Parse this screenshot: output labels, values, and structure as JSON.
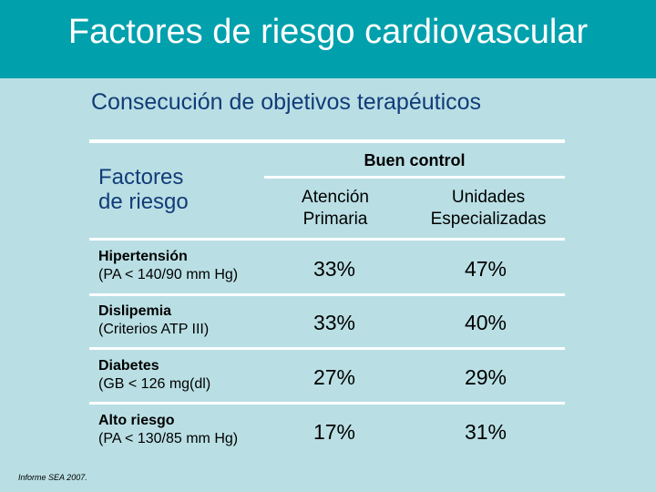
{
  "header": {
    "title": "Factores de riesgo cardiovascular"
  },
  "subtitle": "Consecución de objetivos terapéuticos",
  "table": {
    "risk_column_header": "Factores\nde riesgo",
    "group_header": "Buen control",
    "columns": [
      "Atención\nPrimaria",
      "Unidades\nEspecializadas"
    ],
    "rows": [
      {
        "name": "Hipertensión",
        "criterion": "(PA < 140/90 mm Hg)",
        "values": [
          "33%",
          "47%"
        ]
      },
      {
        "name": "Dislipemia",
        "criterion": "(Criterios ATP III)",
        "values": [
          "33%",
          "40%"
        ]
      },
      {
        "name": "Diabetes",
        "criterion": "(GB < 126 mg(dl)",
        "values": [
          "27%",
          "29%"
        ]
      },
      {
        "name": "Alto riesgo",
        "criterion": "(PA < 130/85 mm Hg)",
        "values": [
          "17%",
          "31%"
        ]
      }
    ]
  },
  "source": "Informe SEA 2007.",
  "colors": {
    "header_bg": "#00a0ad",
    "page_bg": "#b9dfe4",
    "subtitle": "#123c78"
  }
}
